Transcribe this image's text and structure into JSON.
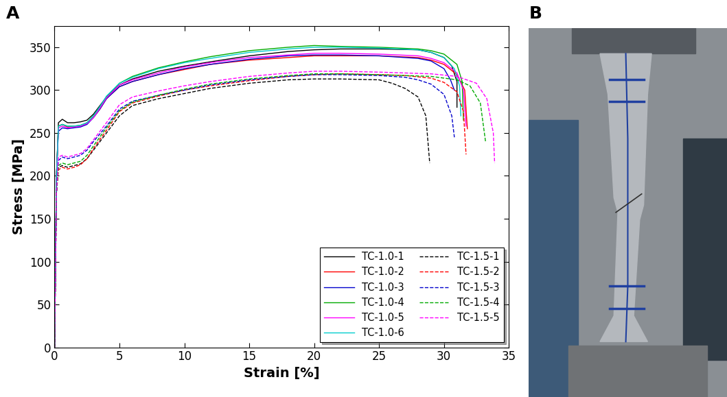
{
  "panel_labels": [
    "A",
    "B"
  ],
  "chart_data": {
    "type": "line",
    "x_label": "Strain [%]",
    "y_label": "Stress [MPa]",
    "xlim": [
      0,
      35
    ],
    "xticks": [
      0,
      5,
      10,
      15,
      20,
      25,
      30,
      35
    ],
    "ylim": [
      0,
      375
    ],
    "yticks": [
      0,
      50,
      100,
      150,
      200,
      250,
      300,
      350
    ],
    "legend": "lower right",
    "grid": false,
    "series": [
      {
        "name": "TC-1.0-1",
        "color": "#000000",
        "line_style": "solid",
        "x": [
          0,
          0.15,
          0.3,
          0.6,
          1,
          1.5,
          2,
          2.5,
          3,
          3.5,
          4,
          5,
          6,
          8,
          10,
          12,
          15,
          18,
          20,
          22,
          25,
          28,
          29,
          30,
          30.6,
          31.0,
          31.0
        ],
        "values": [
          0,
          200,
          262,
          266,
          262,
          262,
          263,
          265,
          272,
          282,
          292,
          306,
          313,
          322,
          328,
          333,
          340,
          345,
          347,
          348,
          348,
          347,
          344,
          338,
          328,
          310,
          280
        ]
      },
      {
        "name": "TC-1.0-2",
        "color": "#ff0000",
        "line_style": "solid",
        "x": [
          0,
          0.15,
          0.3,
          0.6,
          1,
          1.5,
          2,
          2.5,
          3,
          3.5,
          4,
          5,
          6,
          8,
          10,
          12,
          15,
          18,
          20,
          22,
          25,
          28,
          29,
          30,
          31,
          31.6,
          31.8
        ],
        "values": [
          0,
          200,
          258,
          260,
          257,
          257,
          258,
          261,
          268,
          278,
          290,
          304,
          310,
          318,
          324,
          330,
          335,
          338,
          340,
          340,
          340,
          338,
          335,
          330,
          318,
          300,
          255
        ]
      },
      {
        "name": "TC-1.0-3",
        "color": "#0000cc",
        "line_style": "solid",
        "x": [
          0,
          0.15,
          0.3,
          0.6,
          1,
          1.5,
          2,
          2.5,
          3,
          3.5,
          4,
          5,
          6,
          8,
          10,
          12,
          15,
          18,
          20,
          22,
          25,
          28,
          29,
          30,
          30.5,
          30.8
        ],
        "values": [
          0,
          200,
          252,
          256,
          255,
          256,
          257,
          260,
          268,
          278,
          290,
          304,
          310,
          318,
          325,
          330,
          336,
          340,
          341,
          341,
          340,
          337,
          334,
          325,
          312,
          300
        ]
      },
      {
        "name": "TC-1.0-4",
        "color": "#00aa00",
        "line_style": "solid",
        "x": [
          0,
          0.15,
          0.3,
          0.6,
          1,
          1.5,
          2,
          2.5,
          3,
          3.5,
          4,
          5,
          6,
          8,
          10,
          12,
          15,
          18,
          20,
          22,
          25,
          28,
          29,
          30,
          31,
          31.4,
          31.5
        ],
        "values": [
          0,
          200,
          258,
          260,
          258,
          258,
          259,
          262,
          270,
          280,
          292,
          308,
          316,
          326,
          333,
          339,
          346,
          350,
          352,
          351,
          350,
          348,
          346,
          342,
          330,
          310,
          265
        ]
      },
      {
        "name": "TC-1.0-5",
        "color": "#ff00ff",
        "line_style": "solid",
        "x": [
          0,
          0.15,
          0.3,
          0.6,
          1,
          1.5,
          2,
          2.5,
          3,
          3.5,
          4,
          5,
          6,
          8,
          10,
          12,
          15,
          18,
          20,
          22,
          25,
          28,
          29,
          30,
          31,
          31.5,
          31.7
        ],
        "values": [
          0,
          200,
          256,
          258,
          256,
          257,
          258,
          261,
          268,
          279,
          291,
          306,
          312,
          320,
          327,
          332,
          338,
          341,
          343,
          343,
          342,
          340,
          337,
          332,
          320,
          300,
          258
        ]
      },
      {
        "name": "TC-1.0-6",
        "color": "#00cccc",
        "line_style": "solid",
        "x": [
          0,
          0.15,
          0.3,
          0.6,
          1,
          1.5,
          2,
          2.5,
          3,
          3.5,
          4,
          5,
          6,
          8,
          10,
          12,
          15,
          18,
          20,
          22,
          25,
          28,
          29,
          30,
          30.8,
          31.2,
          31.3
        ],
        "values": [
          0,
          200,
          258,
          260,
          258,
          258,
          259,
          262,
          270,
          281,
          293,
          308,
          315,
          325,
          332,
          337,
          344,
          348,
          350,
          350,
          349,
          347,
          344,
          338,
          325,
          305,
          270
        ]
      },
      {
        "name": "TC-1.5-1",
        "color": "#000000",
        "line_style": "dashed",
        "x": [
          0,
          0.15,
          0.3,
          0.6,
          1,
          1.5,
          2,
          2.5,
          3,
          4,
          5,
          6,
          8,
          10,
          12,
          15,
          18,
          20,
          22,
          25,
          26,
          27,
          28,
          28.6,
          28.9
        ],
        "values": [
          0,
          180,
          210,
          212,
          210,
          212,
          214,
          220,
          230,
          250,
          270,
          282,
          290,
          296,
          302,
          308,
          312,
          313,
          313,
          312,
          308,
          302,
          292,
          270,
          215
        ]
      },
      {
        "name": "TC-1.5-2",
        "color": "#ff0000",
        "line_style": "dashed",
        "x": [
          0,
          0.15,
          0.3,
          0.6,
          1,
          1.5,
          2,
          2.5,
          3,
          4,
          5,
          6,
          8,
          10,
          12,
          15,
          18,
          20,
          22,
          25,
          27,
          29,
          30,
          31,
          31.5,
          31.7
        ],
        "values": [
          0,
          180,
          207,
          210,
          208,
          210,
          213,
          220,
          232,
          253,
          275,
          285,
          293,
          300,
          305,
          311,
          316,
          318,
          319,
          318,
          317,
          314,
          309,
          298,
          275,
          225
        ]
      },
      {
        "name": "TC-1.5-3",
        "color": "#0000cc",
        "line_style": "dashed",
        "x": [
          0,
          0.15,
          0.3,
          0.6,
          1,
          1.5,
          2,
          2.5,
          3,
          4,
          5,
          6,
          8,
          10,
          12,
          15,
          18,
          20,
          22,
          25,
          27,
          28,
          29,
          30,
          30.6,
          30.8
        ],
        "values": [
          0,
          180,
          218,
          222,
          220,
          222,
          224,
          230,
          240,
          258,
          278,
          287,
          294,
          300,
          306,
          312,
          316,
          318,
          318,
          317,
          315,
          312,
          307,
          295,
          270,
          245
        ]
      },
      {
        "name": "TC-1.5-4",
        "color": "#00aa00",
        "line_style": "dashed",
        "x": [
          0,
          0.15,
          0.3,
          0.6,
          1,
          1.5,
          2,
          2.5,
          3,
          4,
          5,
          6,
          8,
          10,
          12,
          15,
          18,
          20,
          22,
          25,
          27,
          29,
          31,
          32,
          32.8,
          33.2
        ],
        "values": [
          0,
          180,
          212,
          215,
          213,
          215,
          217,
          224,
          235,
          256,
          276,
          286,
          294,
          301,
          307,
          313,
          317,
          319,
          319,
          318,
          317,
          316,
          312,
          305,
          285,
          240
        ]
      },
      {
        "name": "TC-1.5-5",
        "color": "#ff00ff",
        "line_style": "dashed",
        "x": [
          0,
          0.15,
          0.3,
          0.6,
          1,
          1.5,
          2,
          2.5,
          3,
          4,
          5,
          6,
          8,
          10,
          12,
          15,
          18,
          20,
          22,
          25,
          27,
          29,
          31,
          32.5,
          33.3,
          33.8,
          33.9
        ],
        "values": [
          0,
          180,
          222,
          224,
          222,
          224,
          226,
          232,
          242,
          262,
          283,
          292,
          299,
          305,
          310,
          316,
          320,
          322,
          322,
          321,
          320,
          319,
          316,
          308,
          290,
          250,
          215
        ]
      }
    ]
  }
}
